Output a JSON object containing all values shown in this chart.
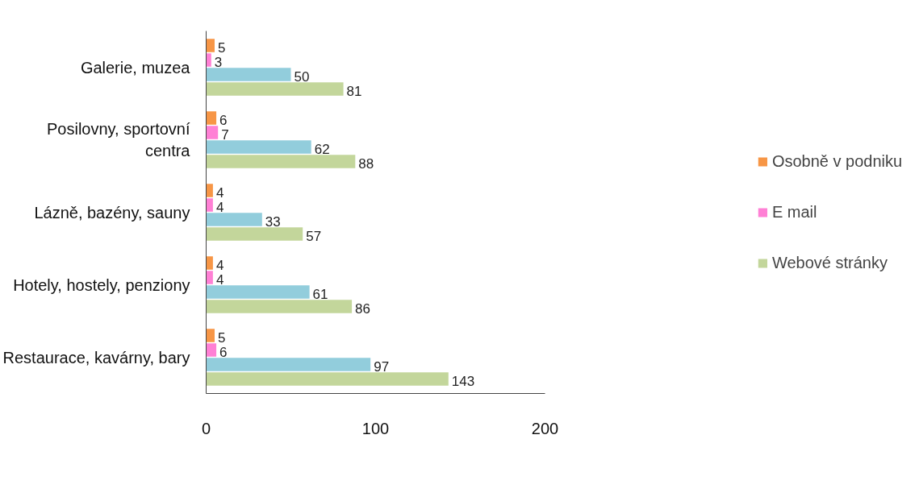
{
  "chart_data": {
    "type": "bar",
    "orientation": "horizontal",
    "categories": [
      "Galerie, muzea",
      "Posilovny, sportovní centra",
      "Lázně, bazény, sauny",
      "Hotely, hostely, penziony",
      "Restaurace, kavárny, bary"
    ],
    "series": [
      {
        "name": "Osobně v podniku",
        "color": "#f79646",
        "values": [
          5,
          6,
          4,
          4,
          5
        ]
      },
      {
        "name": "E mail",
        "color": "#ff80d5",
        "values": [
          3,
          7,
          4,
          4,
          6
        ]
      },
      {
        "color": "#92cddc",
        "values": [
          50,
          62,
          33,
          61,
          97
        ]
      },
      {
        "name": "Webové stránky",
        "color": "#c3d69b",
        "values": [
          81,
          88,
          57,
          86,
          143
        ]
      }
    ],
    "xlim": [
      0,
      200
    ],
    "xticks": [
      0,
      100,
      200
    ],
    "grid": false,
    "legend": "right",
    "data_labels": true
  }
}
